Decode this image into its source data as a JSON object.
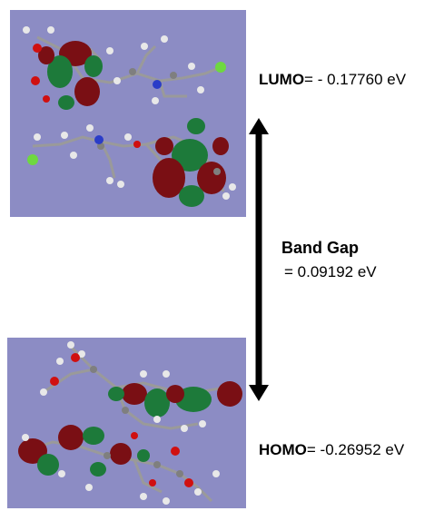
{
  "lumo": {
    "label": "LUMO",
    "value": "= - 0.17760 eV"
  },
  "homo": {
    "label": "HOMO",
    "value": "= -0.26952 eV"
  },
  "band_gap": {
    "title": "Band Gap",
    "value": "= 0.09192 eV"
  },
  "colors": {
    "panel_background": "#8c8cc4",
    "orbital_positive": "#7a0f14",
    "orbital_negative": "#1d7a3a",
    "hydrogen": "#e8e8e8",
    "carbon": "#7f7f7f",
    "oxygen": "#d01010",
    "nitrogen": "#2a3cc8",
    "chlorine": "#6ed840"
  }
}
